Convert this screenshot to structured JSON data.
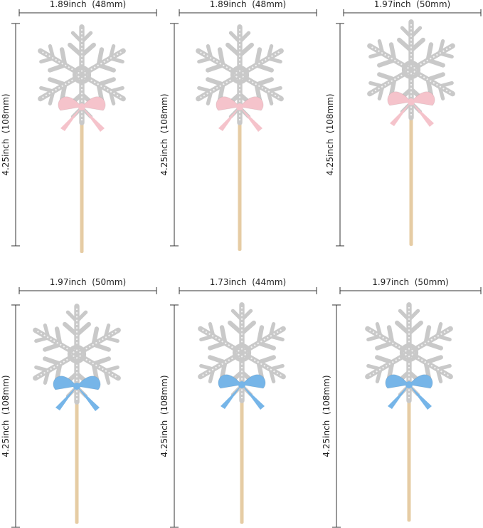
{
  "items": [
    {
      "width": "1.89inch  (48mm)",
      "height": "4.25inch  (108mm)"
    },
    {
      "width": "1.89inch  (48mm)",
      "height": "4.25inch  (108mm)"
    },
    {
      "width": "1.97inch  (50mm)",
      "height": "4.25inch  (108mm)"
    },
    {
      "width": "1.97inch  (50mm)",
      "height": "4.25inch  (108mm)"
    },
    {
      "width": "1.73inch  (44mm)",
      "height": "4.25inch  (108mm)"
    },
    {
      "width": "1.97inch  (50mm)",
      "height": "4.25inch  (108mm)"
    }
  ]
}
